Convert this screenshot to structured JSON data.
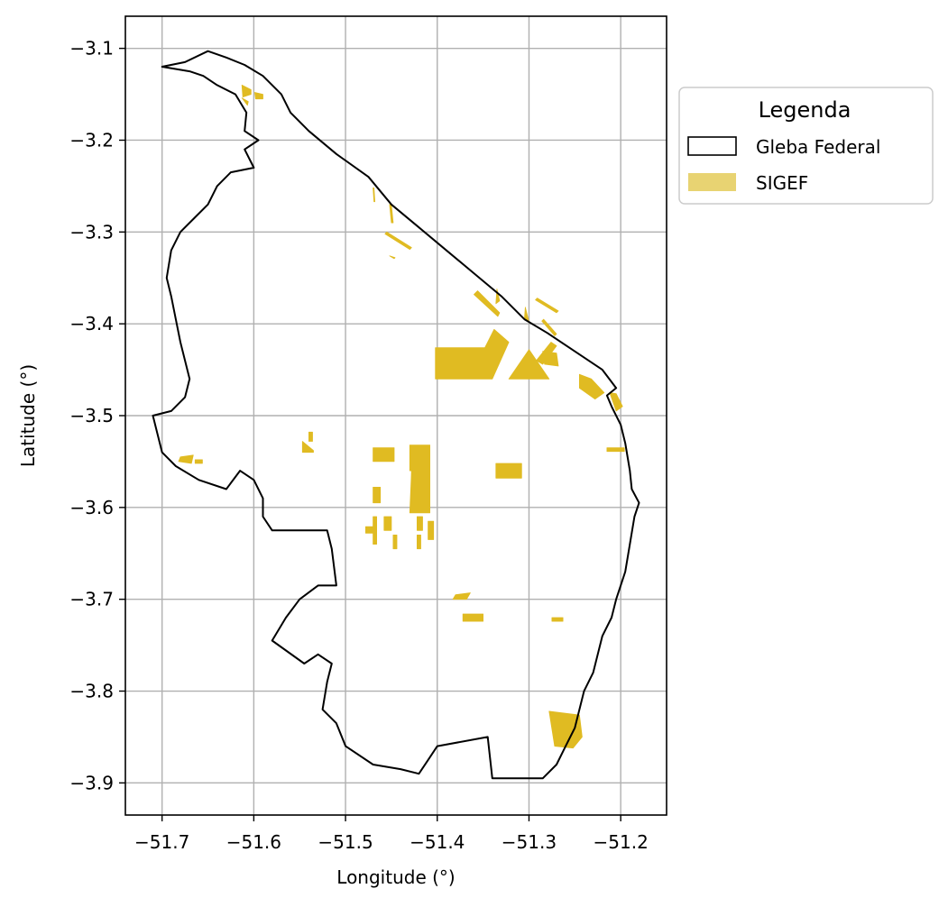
{
  "chart_data": {
    "type": "map",
    "xlabel": "Longitude (°)",
    "ylabel": "Latitude (°)",
    "xlim": [
      -51.74,
      -51.15
    ],
    "ylim": [
      -3.935,
      -3.065
    ],
    "grid": true,
    "x_ticks": [
      -51.7,
      -51.6,
      -51.5,
      -51.4,
      -51.3,
      -51.2
    ],
    "x_tick_labels": [
      "−51.7",
      "−51.6",
      "−51.5",
      "−51.4",
      "−51.3",
      "−51.2"
    ],
    "y_ticks": [
      -3.1,
      -3.2,
      -3.3,
      -3.4,
      -3.5,
      -3.6,
      -3.7,
      -3.8,
      -3.9
    ],
    "y_tick_labels": [
      "−3.1",
      "−3.2",
      "−3.3",
      "−3.4",
      "−3.5",
      "−3.6",
      "−3.7",
      "−3.8",
      "−3.9"
    ],
    "legend": {
      "title": "Legenda",
      "placement": "outside upper right",
      "items": [
        {
          "label": "Gleba Federal",
          "style": "outline",
          "edge_color": "#000000",
          "fill_color": "none"
        },
        {
          "label": "SIGEF",
          "style": "fill",
          "fill_color": "#e8d372"
        }
      ]
    },
    "colors": {
      "gleba_edge": "#000000",
      "sigef_fill": "#e0bb22",
      "grid": "#b0b0b0"
    },
    "gleba_federal_boundary": [
      [
        -51.7,
        -3.12
      ],
      [
        -51.675,
        -3.115
      ],
      [
        -51.65,
        -3.103
      ],
      [
        -51.63,
        -3.11
      ],
      [
        -51.61,
        -3.118
      ],
      [
        -51.59,
        -3.13
      ],
      [
        -51.57,
        -3.15
      ],
      [
        -51.56,
        -3.17
      ],
      [
        -51.54,
        -3.19
      ],
      [
        -51.51,
        -3.215
      ],
      [
        -51.475,
        -3.24
      ],
      [
        -51.45,
        -3.27
      ],
      [
        -51.42,
        -3.295
      ],
      [
        -51.39,
        -3.32
      ],
      [
        -51.36,
        -3.345
      ],
      [
        -51.33,
        -3.37
      ],
      [
        -51.305,
        -3.395
      ],
      [
        -51.28,
        -3.41
      ],
      [
        -51.25,
        -3.43
      ],
      [
        -51.22,
        -3.45
      ],
      [
        -51.205,
        -3.47
      ],
      [
        -51.215,
        -3.478
      ],
      [
        -51.21,
        -3.49
      ],
      [
        -51.2,
        -3.51
      ],
      [
        -51.195,
        -3.53
      ],
      [
        -51.19,
        -3.56
      ],
      [
        -51.188,
        -3.58
      ],
      [
        -51.18,
        -3.595
      ],
      [
        -51.185,
        -3.61
      ],
      [
        -51.19,
        -3.64
      ],
      [
        -51.195,
        -3.67
      ],
      [
        -51.205,
        -3.7
      ],
      [
        -51.21,
        -3.72
      ],
      [
        -51.22,
        -3.74
      ],
      [
        -51.225,
        -3.76
      ],
      [
        -51.23,
        -3.78
      ],
      [
        -51.24,
        -3.8
      ],
      [
        -51.245,
        -3.82
      ],
      [
        -51.25,
        -3.84
      ],
      [
        -51.26,
        -3.86
      ],
      [
        -51.27,
        -3.88
      ],
      [
        -51.285,
        -3.895
      ],
      [
        -51.34,
        -3.895
      ],
      [
        -51.345,
        -3.85
      ],
      [
        -51.4,
        -3.86
      ],
      [
        -51.41,
        -3.875
      ],
      [
        -51.42,
        -3.89
      ],
      [
        -51.44,
        -3.885
      ],
      [
        -51.47,
        -3.88
      ],
      [
        -51.5,
        -3.86
      ],
      [
        -51.51,
        -3.835
      ],
      [
        -51.525,
        -3.82
      ],
      [
        -51.52,
        -3.79
      ],
      [
        -51.515,
        -3.77
      ],
      [
        -51.53,
        -3.76
      ],
      [
        -51.545,
        -3.77
      ],
      [
        -51.58,
        -3.745
      ],
      [
        -51.565,
        -3.72
      ],
      [
        -51.55,
        -3.7
      ],
      [
        -51.53,
        -3.685
      ],
      [
        -51.51,
        -3.685
      ],
      [
        -51.515,
        -3.645
      ],
      [
        -51.52,
        -3.625
      ],
      [
        -51.55,
        -3.625
      ],
      [
        -51.58,
        -3.625
      ],
      [
        -51.59,
        -3.61
      ],
      [
        -51.59,
        -3.59
      ],
      [
        -51.6,
        -3.57
      ],
      [
        -51.615,
        -3.56
      ],
      [
        -51.63,
        -3.58
      ],
      [
        -51.66,
        -3.57
      ],
      [
        -51.685,
        -3.555
      ],
      [
        -51.7,
        -3.54
      ],
      [
        -51.705,
        -3.52
      ],
      [
        -51.71,
        -3.5
      ],
      [
        -51.69,
        -3.495
      ],
      [
        -51.675,
        -3.48
      ],
      [
        -51.67,
        -3.46
      ],
      [
        -51.675,
        -3.44
      ],
      [
        -51.68,
        -3.42
      ],
      [
        -51.685,
        -3.395
      ],
      [
        -51.69,
        -3.37
      ],
      [
        -51.695,
        -3.35
      ],
      [
        -51.69,
        -3.32
      ],
      [
        -51.68,
        -3.3
      ],
      [
        -51.665,
        -3.285
      ],
      [
        -51.65,
        -3.27
      ],
      [
        -51.64,
        -3.25
      ],
      [
        -51.625,
        -3.235
      ],
      [
        -51.6,
        -3.23
      ],
      [
        -51.61,
        -3.21
      ],
      [
        -51.595,
        -3.2
      ],
      [
        -51.61,
        -3.19
      ],
      [
        -51.608,
        -3.17
      ],
      [
        -51.62,
        -3.15
      ],
      [
        -51.64,
        -3.14
      ],
      [
        -51.655,
        -3.13
      ],
      [
        -51.67,
        -3.125
      ],
      [
        -51.7,
        -3.12
      ]
    ],
    "sigef_parcels": [
      [
        [
          -51.402,
          -3.426
        ],
        [
          -51.348,
          -3.426
        ],
        [
          -51.338,
          -3.406
        ],
        [
          -51.322,
          -3.42
        ],
        [
          -51.34,
          -3.46
        ],
        [
          -51.402,
          -3.46
        ]
      ],
      [
        [
          -51.3,
          -3.428
        ],
        [
          -51.278,
          -3.46
        ],
        [
          -51.322,
          -3.46
        ]
      ],
      [
        [
          -51.285,
          -3.43
        ],
        [
          -51.27,
          -3.432
        ],
        [
          -51.268,
          -3.446
        ],
        [
          -51.283,
          -3.444
        ]
      ],
      [
        [
          -51.245,
          -3.455
        ],
        [
          -51.232,
          -3.46
        ],
        [
          -51.218,
          -3.475
        ],
        [
          -51.228,
          -3.482
        ],
        [
          -51.245,
          -3.47
        ]
      ],
      [
        [
          -51.212,
          -3.475
        ],
        [
          -51.205,
          -3.476
        ],
        [
          -51.198,
          -3.49
        ],
        [
          -51.205,
          -3.495
        ]
      ],
      [
        [
          -51.276,
          -3.42
        ],
        [
          -51.27,
          -3.424
        ],
        [
          -51.285,
          -3.444
        ],
        [
          -51.292,
          -3.44
        ]
      ],
      [
        [
          -51.36,
          -3.368
        ],
        [
          -51.334,
          -3.392
        ],
        [
          -51.332,
          -3.388
        ],
        [
          -51.356,
          -3.364
        ]
      ],
      [
        [
          -51.335,
          -3.362
        ],
        [
          -51.332,
          -3.375
        ],
        [
          -51.336,
          -3.378
        ]
      ],
      [
        [
          -51.304,
          -3.382
        ],
        [
          -51.3,
          -3.398
        ],
        [
          -51.305,
          -3.395
        ]
      ],
      [
        [
          -51.291,
          -3.372
        ],
        [
          -51.268,
          -3.386
        ],
        [
          -51.27,
          -3.388
        ],
        [
          -51.293,
          -3.374
        ]
      ],
      [
        [
          -51.284,
          -3.395
        ],
        [
          -51.27,
          -3.411
        ],
        [
          -51.272,
          -3.413
        ],
        [
          -51.286,
          -3.397
        ]
      ],
      [
        [
          -51.455,
          -3.3
        ],
        [
          -51.428,
          -3.317
        ],
        [
          -51.43,
          -3.319
        ],
        [
          -51.457,
          -3.302
        ]
      ],
      [
        [
          -51.452,
          -3.27
        ],
        [
          -51.45,
          -3.29
        ],
        [
          -51.448,
          -3.29
        ],
        [
          -51.45,
          -3.27
        ]
      ],
      [
        [
          -51.47,
          -3.252
        ],
        [
          -51.469,
          -3.267
        ],
        [
          -51.468,
          -3.267
        ],
        [
          -51.469,
          -3.252
        ]
      ],
      [
        [
          -51.452,
          -3.326
        ],
        [
          -51.447,
          -3.329
        ],
        [
          -51.446,
          -3.328
        ]
      ],
      [
        [
          -51.613,
          -3.14
        ],
        [
          -51.603,
          -3.145
        ],
        [
          -51.603,
          -3.15
        ],
        [
          -51.612,
          -3.153
        ]
      ],
      [
        [
          -51.599,
          -3.148
        ],
        [
          -51.59,
          -3.15
        ],
        [
          -51.59,
          -3.155
        ],
        [
          -51.598,
          -3.155
        ]
      ],
      [
        [
          -51.613,
          -3.154
        ],
        [
          -51.606,
          -3.158
        ],
        [
          -51.607,
          -3.162
        ]
      ],
      [
        [
          -51.47,
          -3.535
        ],
        [
          -51.447,
          -3.535
        ],
        [
          -51.447,
          -3.55
        ],
        [
          -51.47,
          -3.55
        ]
      ],
      [
        [
          -51.43,
          -3.532
        ],
        [
          -51.408,
          -3.532
        ],
        [
          -51.408,
          -3.56
        ],
        [
          -51.43,
          -3.56
        ]
      ],
      [
        [
          -51.428,
          -3.56
        ],
        [
          -51.408,
          -3.56
        ],
        [
          -51.408,
          -3.606
        ],
        [
          -51.43,
          -3.606
        ]
      ],
      [
        [
          -51.428,
          -3.535
        ],
        [
          -51.422,
          -3.535
        ],
        [
          -51.422,
          -3.568
        ],
        [
          -51.428,
          -3.568
        ]
      ],
      [
        [
          -51.47,
          -3.578
        ],
        [
          -51.462,
          -3.578
        ],
        [
          -51.462,
          -3.595
        ],
        [
          -51.47,
          -3.595
        ]
      ],
      [
        [
          -51.47,
          -3.61
        ],
        [
          -51.466,
          -3.61
        ],
        [
          -51.466,
          -3.64
        ],
        [
          -51.47,
          -3.64
        ]
      ],
      [
        [
          -51.458,
          -3.61
        ],
        [
          -51.45,
          -3.61
        ],
        [
          -51.45,
          -3.625
        ],
        [
          -51.458,
          -3.625
        ]
      ],
      [
        [
          -51.448,
          -3.63
        ],
        [
          -51.444,
          -3.63
        ],
        [
          -51.444,
          -3.645
        ],
        [
          -51.448,
          -3.645
        ]
      ],
      [
        [
          -51.422,
          -3.61
        ],
        [
          -51.416,
          -3.61
        ],
        [
          -51.416,
          -3.625
        ],
        [
          -51.422,
          -3.625
        ]
      ],
      [
        [
          -51.41,
          -3.615
        ],
        [
          -51.404,
          -3.615
        ],
        [
          -51.404,
          -3.635
        ],
        [
          -51.41,
          -3.635
        ]
      ],
      [
        [
          -51.422,
          -3.63
        ],
        [
          -51.418,
          -3.63
        ],
        [
          -51.418,
          -3.645
        ],
        [
          -51.422,
          -3.645
        ]
      ],
      [
        [
          -51.478,
          -3.621
        ],
        [
          -51.468,
          -3.621
        ],
        [
          -51.468,
          -3.628
        ],
        [
          -51.478,
          -3.628
        ]
      ],
      [
        [
          -51.336,
          -3.552
        ],
        [
          -51.308,
          -3.552
        ],
        [
          -51.308,
          -3.568
        ],
        [
          -51.336,
          -3.568
        ]
      ],
      [
        [
          -51.547,
          -3.528
        ],
        [
          -51.535,
          -3.538
        ],
        [
          -51.535,
          -3.54
        ],
        [
          -51.547,
          -3.54
        ]
      ],
      [
        [
          -51.54,
          -3.518
        ],
        [
          -51.536,
          -3.518
        ],
        [
          -51.536,
          -3.528
        ],
        [
          -51.54,
          -3.528
        ]
      ],
      [
        [
          -51.68,
          -3.545
        ],
        [
          -51.666,
          -3.543
        ],
        [
          -51.668,
          -3.552
        ],
        [
          -51.682,
          -3.55
        ]
      ],
      [
        [
          -51.664,
          -3.548
        ],
        [
          -51.656,
          -3.548
        ],
        [
          -51.656,
          -3.552
        ],
        [
          -51.664,
          -3.552
        ]
      ],
      [
        [
          -51.215,
          -3.535
        ],
        [
          -51.196,
          -3.535
        ],
        [
          -51.196,
          -3.539
        ],
        [
          -51.215,
          -3.539
        ]
      ],
      [
        [
          -51.38,
          -3.695
        ],
        [
          -51.364,
          -3.693
        ],
        [
          -51.368,
          -3.7
        ],
        [
          -51.383,
          -3.7
        ]
      ],
      [
        [
          -51.372,
          -3.716
        ],
        [
          -51.35,
          -3.716
        ],
        [
          -51.35,
          -3.724
        ],
        [
          -51.372,
          -3.724
        ]
      ],
      [
        [
          -51.275,
          -3.72
        ],
        [
          -51.263,
          -3.72
        ],
        [
          -51.263,
          -3.724
        ],
        [
          -51.275,
          -3.724
        ]
      ],
      [
        [
          -51.278,
          -3.822
        ],
        [
          -51.245,
          -3.826
        ],
        [
          -51.242,
          -3.85
        ],
        [
          -51.252,
          -3.862
        ],
        [
          -51.272,
          -3.86
        ]
      ]
    ]
  }
}
